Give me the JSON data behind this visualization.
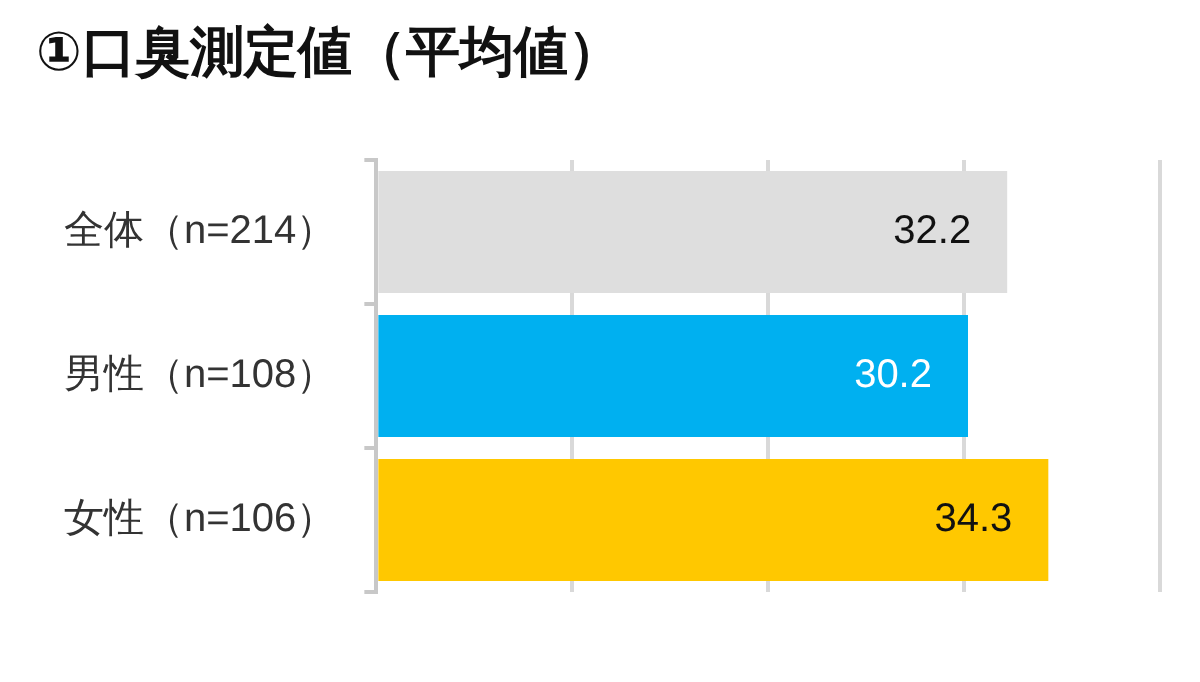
{
  "chart_data": {
    "type": "bar",
    "orientation": "horizontal",
    "title": "①口臭測定値（平均値）",
    "categories": [
      "全体（n=214）",
      "男性（n=108）",
      "女性（n=106）"
    ],
    "values": [
      32.2,
      30.2,
      34.3
    ],
    "colors": [
      "#dedede",
      "#00b0f0",
      "#ffc800"
    ],
    "xlim": [
      0,
      40
    ],
    "xticks": [
      {
        "value": 0,
        "label": null
      },
      {
        "value": 10,
        "label": null
      },
      {
        "value": 20,
        "label": null
      },
      {
        "value": 30,
        "label": null
      },
      {
        "value": 40,
        "label": null
      }
    ],
    "grid": "x",
    "tick_labels": "y",
    "data_labels": true
  }
}
